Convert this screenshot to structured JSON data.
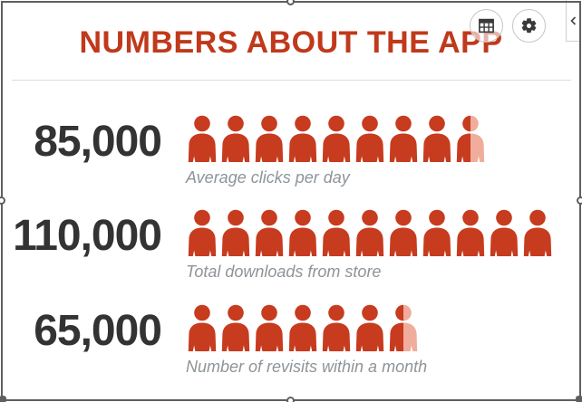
{
  "header": {
    "title": "NUMBERS ABOUT THE APP",
    "buttons": [
      {
        "name": "table-view-button",
        "icon": "table-grid-icon"
      },
      {
        "name": "settings-button",
        "icon": "gear-icon"
      }
    ],
    "collapse_icon": "chevron-left-icon"
  },
  "colors": {
    "accent": "#c0391b",
    "icon_full": "#c73b1f",
    "icon_faded": "#f0ad9c",
    "number": "#333333",
    "label": "#8e9499",
    "separator": "#dcdcdc",
    "frame": "#5f5f5f",
    "button_border": "#c6c6c6",
    "button_glyph": "#3a3a3a"
  },
  "rows": [
    {
      "value": "85,000",
      "label": "Average clicks per day",
      "icons_full": 8,
      "icons_half": 1
    },
    {
      "value": "110,000",
      "label": "Total downloads from store",
      "icons_full": 11,
      "icons_half": 0
    },
    {
      "value": "65,000",
      "label": "Number of revisits within a month",
      "icons_full": 6,
      "icons_half": 1
    }
  ],
  "chart_data": {
    "type": "bar",
    "subtype": "pictogram",
    "title": "NUMBERS ABOUT THE APP",
    "categories": [
      "Average clicks per day",
      "Total downloads from store",
      "Number of revisits within a month"
    ],
    "values": [
      85000,
      110000,
      65000
    ],
    "value_labels": [
      "85,000",
      "110,000",
      "65,000"
    ],
    "units_per_icon": 10000,
    "icon_counts": [
      8.5,
      11,
      6.5
    ],
    "icon": "person",
    "legend_position": "none",
    "grid": false
  }
}
